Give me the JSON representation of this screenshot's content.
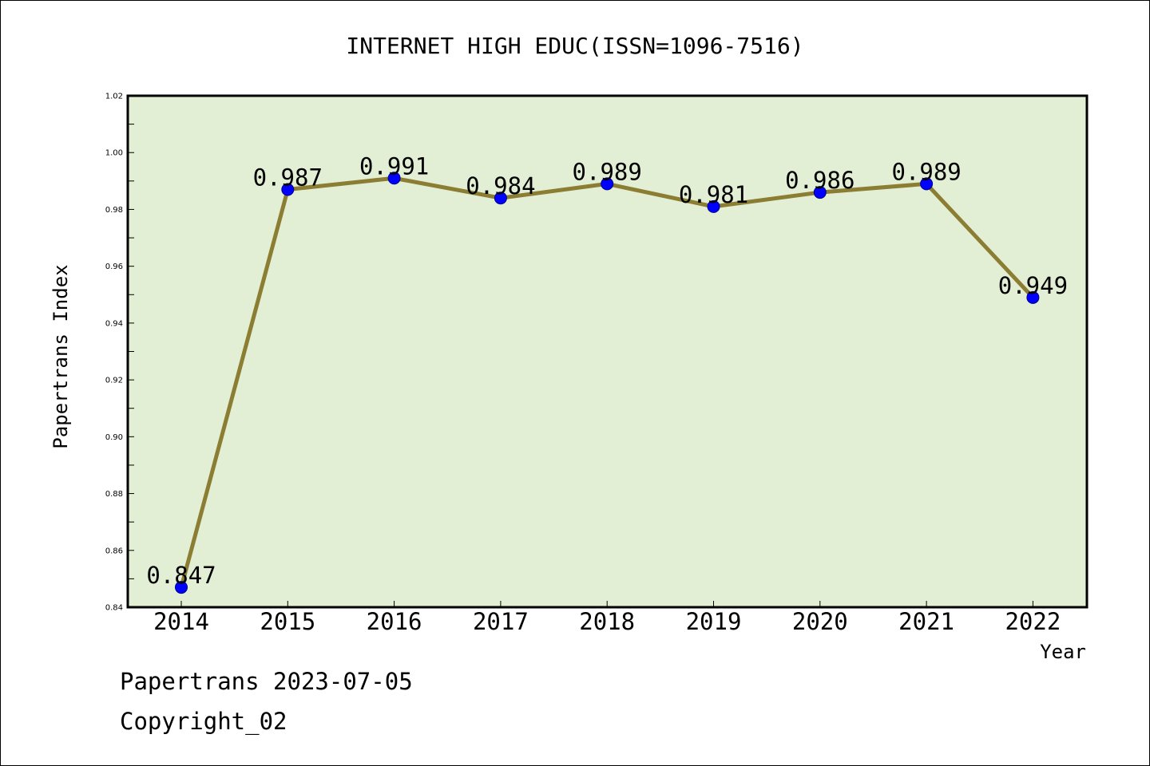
{
  "chart_data": {
    "type": "line",
    "title": "INTERNET HIGH EDUC(ISSN=1096-7516)",
    "xlabel": "Year",
    "ylabel": "Papertrans Index",
    "categories": [
      "2014",
      "2015",
      "2016",
      "2017",
      "2018",
      "2019",
      "2020",
      "2021",
      "2022"
    ],
    "series": [
      {
        "values": [
          0.847,
          0.987,
          0.991,
          0.984,
          0.989,
          0.981,
          0.986,
          0.989,
          0.949
        ]
      }
    ],
    "data_labels": [
      "0.847",
      "0.987",
      "0.991",
      "0.984",
      "0.989",
      "0.981",
      "0.986",
      "0.989",
      "0.949"
    ],
    "ylim": [
      0.84,
      1.02
    ],
    "yticks": [
      "0.84",
      "0.86",
      "0.88",
      "0.90",
      "0.92",
      "0.94",
      "0.96",
      "0.98",
      "1.00",
      "1.02"
    ],
    "grid": false,
    "colors": {
      "plot_background": "#e2efd5",
      "line": "#8b7d32",
      "marker": "#0000ff"
    }
  },
  "footer": {
    "line1": "Papertrans 2023-07-05",
    "line2": "Copyright_02"
  }
}
